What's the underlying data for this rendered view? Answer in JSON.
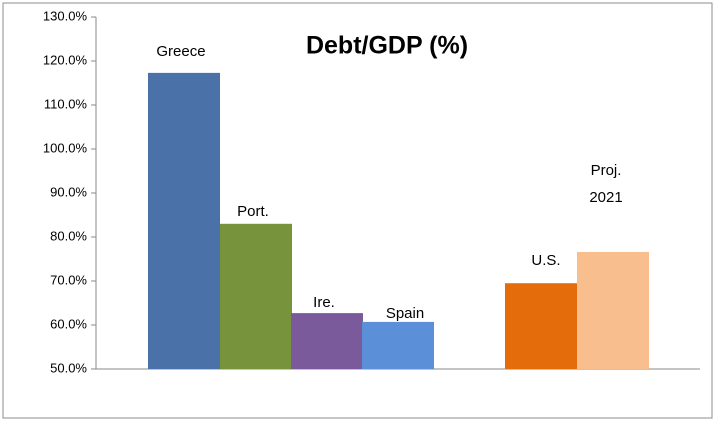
{
  "chart_data": {
    "type": "bar",
    "title": "Debt/GDP (%)",
    "categories": [
      "Greece",
      "Port.",
      "Ire.",
      "Spain",
      "U.S.",
      "Proj. 2021"
    ],
    "values": [
      117.3,
      83.0,
      62.7,
      60.7,
      69.5,
      76.6
    ],
    "colors": [
      "#4a72a8",
      "#77933c",
      "#7a5a9a",
      "#5b8fd8",
      "#e46c0a",
      "#f9be8d"
    ],
    "ylim": [
      50,
      130
    ],
    "yticks": [
      {
        "value": 50,
        "label": "50.0%"
      },
      {
        "value": 60,
        "label": "60.0%"
      },
      {
        "value": 70,
        "label": "70.0%"
      },
      {
        "value": 80,
        "label": "80.0%"
      },
      {
        "value": 90,
        "label": "90.0%"
      },
      {
        "value": 100,
        "label": "100.0%"
      },
      {
        "value": 110,
        "label": "110.0%"
      },
      {
        "value": 120,
        "label": "120.0%"
      },
      {
        "value": 130,
        "label": "130.0%"
      }
    ],
    "grid": false
  }
}
